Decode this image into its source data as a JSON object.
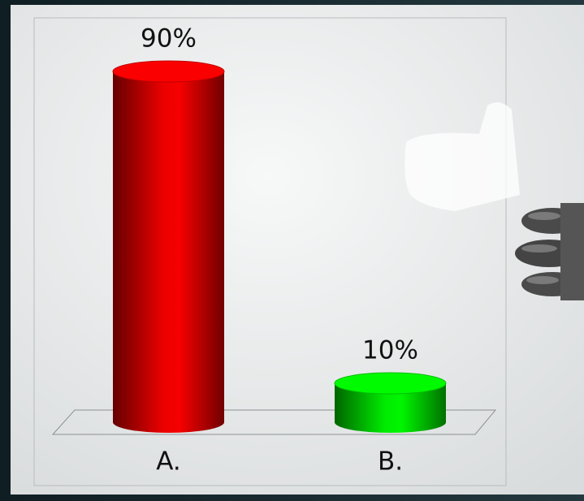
{
  "chart_data": {
    "type": "bar",
    "categories": [
      "A.",
      "B."
    ],
    "values": [
      90,
      10
    ],
    "value_labels": [
      "90%",
      "10%"
    ],
    "colors": [
      "#e00000",
      "#00e000"
    ]
  }
}
